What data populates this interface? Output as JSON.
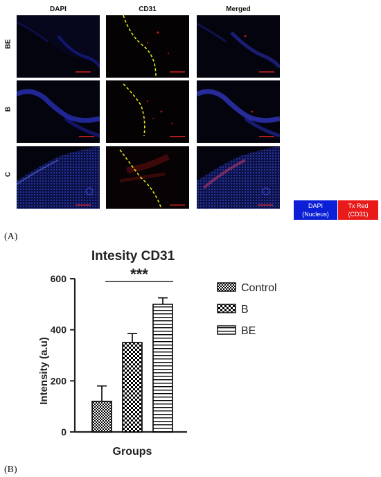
{
  "figure_a": {
    "label": "(A)",
    "columns": [
      "DAPI",
      "CD31",
      "Merged"
    ],
    "rows": [
      "BE",
      "B",
      "C"
    ],
    "legend": {
      "dapi_line1": "DAPI",
      "dapi_line2": "(Nucleus)",
      "txred_line1": "Tx Red",
      "txred_line2": "(CD31)",
      "dapi_color": "#0a1fd6",
      "txred_color": "#e81a1a"
    }
  },
  "figure_b": {
    "label": "(B)"
  },
  "chart_data": {
    "type": "bar",
    "title": "Intesity CD31",
    "xlabel": "Groups",
    "ylabel": "Intensity (a.u)",
    "ylim": [
      0,
      600
    ],
    "yticks": [
      "0",
      "200",
      "400",
      "600"
    ],
    "categories": [
      "Control",
      "B",
      "BE"
    ],
    "values": [
      120,
      350,
      500
    ],
    "errors": [
      60,
      35,
      25
    ],
    "significance": "***",
    "legend": [
      "Control",
      "B",
      "BE"
    ],
    "patterns": [
      "checker-fine",
      "checker-coarse",
      "horizontal-lines"
    ]
  }
}
